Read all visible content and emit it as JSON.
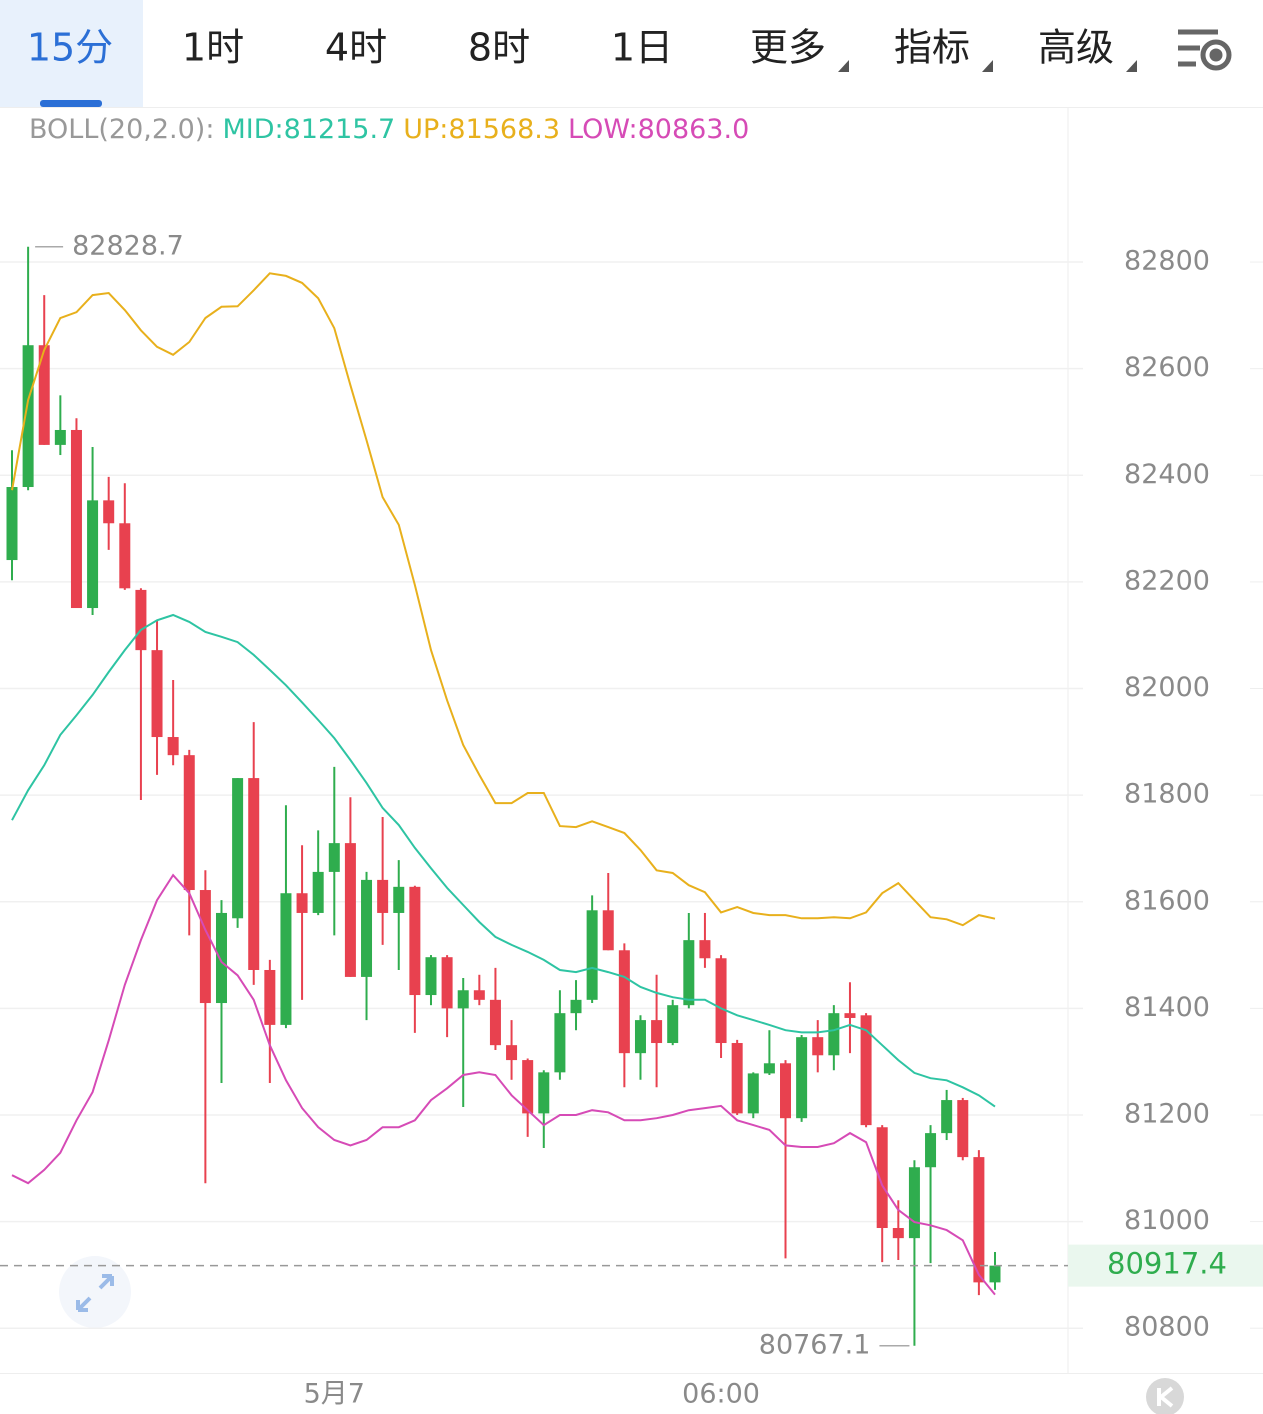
{
  "tabs": [
    "15分",
    "1时",
    "4时",
    "8时",
    "1日",
    "更多",
    "指标",
    "高级"
  ],
  "chart_data": {
    "type": "candlestick",
    "indicator": "BOLL(20,2.0):",
    "categories": [
      null,
      null,
      null,
      null,
      null,
      null,
      null,
      null,
      null,
      null,
      null,
      null,
      null,
      null,
      null,
      null,
      null,
      null,
      null,
      null,
      "5月7",
      null,
      null,
      null,
      null,
      null,
      null,
      null,
      null,
      null,
      null,
      null,
      null,
      null,
      null,
      null,
      null,
      null,
      null,
      null,
      null,
      null,
      null,
      null,
      "06:00",
      null,
      null,
      null,
      null,
      null,
      null,
      null,
      null,
      null,
      null,
      null,
      null,
      null,
      null,
      null,
      null,
      null
    ],
    "open": [
      82241,
      82378,
      82644,
      82457,
      82485,
      82151,
      82353,
      82310,
      82185,
      82072,
      81909,
      81875,
      81622,
      81410,
      81569,
      81832,
      81472,
      81369,
      81616,
      81579,
      81656,
      81710,
      81459,
      81641,
      81579,
      81628,
      81425,
      81496,
      81400,
      81434,
      81416,
      81331,
      81303,
      81203,
      81280,
      81391,
      81416,
      81584,
      81509,
      81316,
      81378,
      81335,
      81406,
      81528,
      81494,
      81335,
      81203,
      81278,
      81297,
      81194,
      81346,
      81312,
      81391,
      81387,
      81177,
      80988,
      80969,
      81102,
      81166,
      81228,
      81121,
      80886
    ],
    "high": [
      82447,
      82828.7,
      82738,
      82550,
      82507,
      82453,
      82397,
      82385,
      82188,
      82128,
      82016,
      81885,
      81659,
      81603,
      81832,
      81937,
      81491,
      81781,
      81706,
      81734,
      81853,
      81796,
      81656,
      81759,
      81678,
      81630,
      81500,
      81500,
      81457,
      81463,
      81476,
      81378,
      81306,
      81284,
      81434,
      81453,
      81612,
      81654,
      81522,
      81387,
      81463,
      81416,
      81579,
      81579,
      81500,
      81341,
      81280,
      81359,
      81303,
      81350,
      81378,
      81406,
      81449,
      81391,
      81181,
      81040,
      81115,
      81181,
      81247,
      81232,
      81134,
      80943
    ],
    "low": [
      82203,
      82372,
      82457,
      82438,
      82151,
      82138,
      82260,
      82185,
      81791,
      81838,
      81856,
      81537,
      81072,
      81260,
      81551,
      81444,
      81260,
      81363,
      81416,
      81575,
      81537,
      81459,
      81378,
      81519,
      81472,
      81354,
      81406,
      81346,
      81215,
      81406,
      81322,
      81266,
      81159,
      81138,
      81266,
      81359,
      81410,
      81509,
      81252,
      81266,
      81252,
      81331,
      81400,
      81476,
      81307,
      81200,
      81194,
      81275,
      80931,
      81187,
      81280,
      81284,
      81316,
      81177,
      80924,
      80928,
      80767.1,
      80922,
      81153,
      81115,
      80862,
      80872
    ],
    "close": [
      82378,
      82644,
      82457,
      82485,
      82151,
      82353,
      82310,
      82188,
      82072,
      81909,
      81875,
      81622,
      81410,
      81579,
      81832,
      81472,
      81369,
      81616,
      81579,
      81656,
      81710,
      81459,
      81641,
      81579,
      81628,
      81425,
      81496,
      81400,
      81434,
      81416,
      81331,
      81303,
      81203,
      81280,
      81391,
      81416,
      81584,
      81509,
      81316,
      81378,
      81335,
      81406,
      81528,
      81494,
      81335,
      81203,
      81278,
      81297,
      81194,
      81346,
      81312,
      81391,
      81382,
      81181,
      80988,
      80969,
      81102,
      81166,
      81228,
      81121,
      80886,
      80917.4
    ],
    "up_color": "#2fad4e",
    "down_color": "#e8414f",
    "series": [
      {
        "name": "MID:81215.7",
        "color": "#2ec4a3",
        "values": [
          81753,
          81809,
          81856,
          81913,
          81950,
          81988,
          82031,
          82072,
          82110,
          82128,
          82138,
          82125,
          82106,
          82097,
          82087,
          82063,
          82035,
          82006,
          81974,
          81941,
          81907,
          81866,
          81823,
          81776,
          81744,
          81701,
          81663,
          81626,
          81594,
          81562,
          81534,
          81519,
          81506,
          81491,
          81472,
          81468,
          81476,
          81468,
          81459,
          81440,
          81429,
          81421,
          81416,
          81416,
          81400,
          81387,
          81378,
          81369,
          81359,
          81355,
          81355,
          81359,
          81369,
          81359,
          81331,
          81303,
          81279,
          81269,
          81265,
          81252,
          81237,
          81215.7
        ]
      },
      {
        "name": "UP:81568.3",
        "color": "#e8b01c",
        "values": [
          82372,
          82541,
          82635,
          82695,
          82706,
          82738,
          82742,
          82710,
          82672,
          82641,
          82626,
          82650,
          82695,
          82716,
          82717,
          82747,
          82779,
          82774,
          82761,
          82732,
          82676,
          82569,
          82466,
          82359,
          82307,
          82194,
          82072,
          81978,
          81894,
          81838,
          81785,
          81785,
          81804,
          81804,
          81742,
          81740,
          81751,
          81740,
          81729,
          81697,
          81659,
          81654,
          81631,
          81618,
          81580,
          81590,
          81579,
          81575,
          81575,
          81569,
          81569,
          81571,
          81569,
          81580,
          81616,
          81635,
          81603,
          81571,
          81567,
          81556,
          81575,
          81568.3
        ]
      },
      {
        "name": "LOW:80863.0",
        "color": "#d64bb6",
        "values": [
          81087,
          81072,
          81097,
          81129,
          81190,
          81243,
          81340,
          81444,
          81528,
          81603,
          81650,
          81616,
          81547,
          81487,
          81462,
          81416,
          81331,
          81265,
          81213,
          81177,
          81153,
          81143,
          81153,
          81177,
          81177,
          81190,
          81228,
          81250,
          81275,
          81280,
          81275,
          81237,
          81209,
          81181,
          81200,
          81200,
          81209,
          81205,
          81190,
          81190,
          81194,
          81200,
          81209,
          81213,
          81217,
          81190,
          81181,
          81172,
          81143,
          81140,
          81140,
          81147,
          81166,
          81149,
          81068,
          81022,
          80999,
          80993,
          80984,
          80965,
          80900,
          80863.0
        ]
      }
    ],
    "ylim": [
      80716,
      83089
    ],
    "yticks": [
      80800,
      81000,
      81200,
      81400,
      81600,
      81800,
      82000,
      82200,
      82400,
      82600,
      82800
    ],
    "grid": true
  }
}
